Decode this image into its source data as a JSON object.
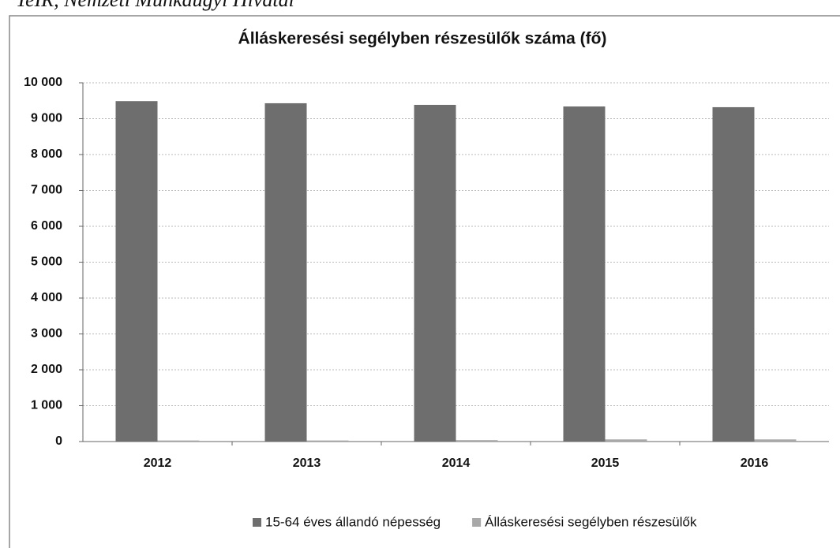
{
  "source": "TeIR, Nemzeti Munkaügyi Hivatal",
  "chart_data": {
    "type": "bar",
    "title": "Álláskeresési segélyben részesülők száma (fő)",
    "categories": [
      "2012",
      "2013",
      "2014",
      "2015",
      "2016"
    ],
    "series": [
      {
        "name": "15-64 éves állandó népesség",
        "color": "#6e6e6e",
        "values": [
          9490,
          9430,
          9385,
          9340,
          9320
        ]
      },
      {
        "name": "Álláskeresési segélyben részesülők",
        "color": "#a8a8a8",
        "values": [
          30,
          30,
          40,
          60,
          60
        ]
      }
    ],
    "ylim": [
      0,
      10000
    ],
    "yticks": [
      0,
      {
        "value": 1000,
        "label": "1 000"
      },
      {
        "value": 2000,
        "label": "2 000"
      },
      {
        "value": 3000,
        "label": "3 000"
      },
      {
        "value": 4000,
        "label": "4 000"
      },
      {
        "value": 5000,
        "label": "5 000"
      },
      {
        "value": 6000,
        "label": "6 000"
      },
      {
        "value": 7000,
        "label": "7 000"
      },
      {
        "value": 8000,
        "label": "8 000"
      },
      {
        "value": 9000,
        "label": "9 000"
      },
      {
        "value": 10000,
        "label": "10 000"
      }
    ],
    "grid": true
  }
}
